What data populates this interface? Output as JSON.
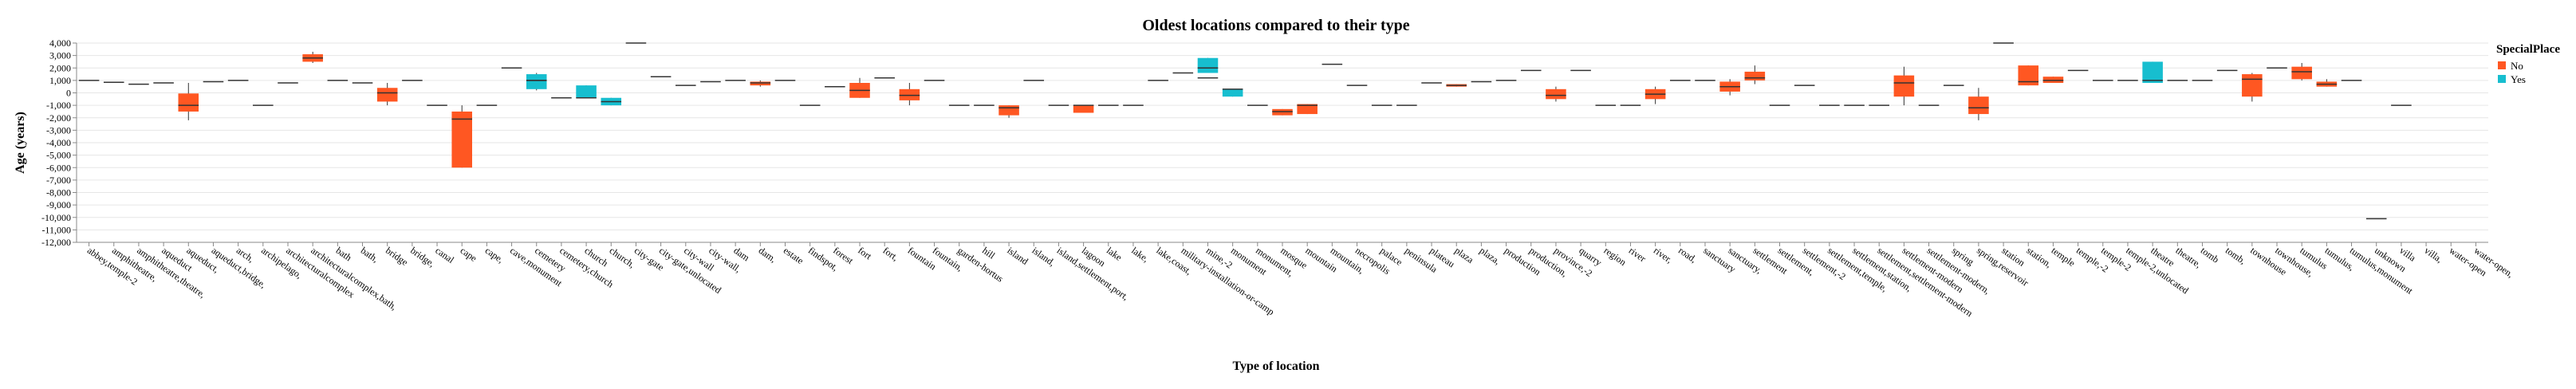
{
  "chart_data": {
    "type": "boxplot",
    "title": "Oldest locations compared to their type",
    "xlabel": "Type of location",
    "ylabel": "Age (years)",
    "ylim": [
      -12000,
      4000
    ],
    "yticks": [
      4000,
      3000,
      2000,
      1000,
      0,
      -1000,
      -2000,
      -3000,
      -4000,
      -5000,
      -6000,
      -7000,
      -8000,
      -9000,
      -10000,
      -11000,
      -12000
    ],
    "ytick_labels": [
      "4,000",
      "3,000",
      "2,000",
      "1,000",
      "0",
      "-1,000",
      "-2,000",
      "-3,000",
      "-4,000",
      "-5,000",
      "-6,000",
      "-7,000",
      "-8,000",
      "-9,000",
      "-10,000",
      "-11,000",
      "-12,000"
    ],
    "grid": true,
    "legend": {
      "title": "SpecialPlace",
      "position": "right",
      "entries": [
        {
          "label": "No",
          "color": "#ff5722"
        },
        {
          "label": "Yes",
          "color": "#17becf"
        }
      ]
    },
    "categories": [
      "abbey,temple-2",
      "amphitheatre,",
      "amphitheatre,theatre,",
      "aqueduct",
      "aqueduct,",
      "aqueduct,bridge,",
      "arch,",
      "archipelago,",
      "architecturalcomplex",
      "architecturalcomplex,bath,",
      "bath",
      "bath,",
      "bridge",
      "bridge,",
      "canal",
      "cape",
      "cape,",
      "cave,monument",
      "cemetery",
      "cemetery,church",
      "church",
      "church,",
      "city-gate",
      "city-gate,unlocated",
      "city-wall",
      "city-wall,",
      "dam",
      "dam,",
      "estate",
      "findspot,",
      "forest",
      "fort",
      "fort,",
      "fountain",
      "fountain,",
      "garden-hortus",
      "hill",
      "island",
      "island,",
      "island,settlement,port,",
      "lagoon",
      "lake",
      "lake,",
      "lake,coast,",
      "military-installation-or-camp",
      "mine,-2",
      "monument",
      "monument,",
      "mosque",
      "mountain",
      "mountain,",
      "necropolis",
      "palace",
      "peninsula",
      "plateau",
      "plaza",
      "plaza,",
      "production",
      "production,",
      "province,-2",
      "quarry",
      "region",
      "river",
      "river,",
      "road,",
      "sanctuary",
      "sanctuary,",
      "settlement",
      "settlement,",
      "settlement,-2",
      "settlement,temple,",
      "settlement,station,",
      "settlement,settlement-modern",
      "settlement-modern",
      "settlement-modern,",
      "spring",
      "spring,reservoir",
      "station",
      "station,",
      "temple",
      "temple,-2",
      "temple-2",
      "temple-2,unlocated",
      "theatre",
      "theatre,",
      "tomb",
      "tomb,",
      "townhouse",
      "townhouse,",
      "tumulus",
      "tumulus,",
      "tumulus,monument",
      "unknown",
      "villa",
      "villa,",
      "water-open",
      "water-open,"
    ],
    "boxes": [
      {
        "cat": 0,
        "group": "No",
        "min": 1000,
        "q1": 1000,
        "median": 1000,
        "q3": 1000,
        "max": 1000
      },
      {
        "cat": 1,
        "group": "No",
        "min": 850,
        "q1": 850,
        "median": 850,
        "q3": 850,
        "max": 850
      },
      {
        "cat": 2,
        "group": "No",
        "min": 700,
        "q1": 700,
        "median": 700,
        "q3": 700,
        "max": 700
      },
      {
        "cat": 3,
        "group": "No",
        "min": 800,
        "q1": 800,
        "median": 800,
        "q3": 800,
        "max": 800
      },
      {
        "cat": 4,
        "group": "No",
        "min": -2200,
        "q1": -1500,
        "median": -1000,
        "q3": -50,
        "max": 800
      },
      {
        "cat": 5,
        "group": "No",
        "min": 900,
        "q1": 900,
        "median": 900,
        "q3": 900,
        "max": 900
      },
      {
        "cat": 6,
        "group": "No",
        "min": 1000,
        "q1": 1000,
        "median": 1000,
        "q3": 1000,
        "max": 1000
      },
      {
        "cat": 7,
        "group": "No",
        "min": -1000,
        "q1": -1000,
        "median": -1000,
        "q3": -1000,
        "max": -1000
      },
      {
        "cat": 8,
        "group": "No",
        "min": 800,
        "q1": 800,
        "median": 800,
        "q3": 800,
        "max": 800
      },
      {
        "cat": 9,
        "group": "No",
        "min": 2400,
        "q1": 2500,
        "median": 2800,
        "q3": 3100,
        "max": 3300
      },
      {
        "cat": 10,
        "group": "No",
        "min": 1000,
        "q1": 1000,
        "median": 1000,
        "q3": 1000,
        "max": 1000
      },
      {
        "cat": 11,
        "group": "No",
        "min": 800,
        "q1": 800,
        "median": 800,
        "q3": 800,
        "max": 800
      },
      {
        "cat": 12,
        "group": "No",
        "min": -1000,
        "q1": -700,
        "median": 0,
        "q3": 400,
        "max": 800
      },
      {
        "cat": 13,
        "group": "No",
        "min": 1000,
        "q1": 1000,
        "median": 1000,
        "q3": 1000,
        "max": 1000
      },
      {
        "cat": 14,
        "group": "No",
        "min": -1000,
        "q1": -1000,
        "median": -1000,
        "q3": -1000,
        "max": -1000
      },
      {
        "cat": 15,
        "group": "No",
        "min": -6000,
        "q1": -6000,
        "median": -2100,
        "q3": -1500,
        "max": -1000
      },
      {
        "cat": 16,
        "group": "No",
        "min": -1000,
        "q1": -1000,
        "median": -1000,
        "q3": -1000,
        "max": -1000
      },
      {
        "cat": 17,
        "group": "No",
        "min": 2000,
        "q1": 2000,
        "median": 2000,
        "q3": 2000,
        "max": 2000
      },
      {
        "cat": 18,
        "group": "Yes",
        "min": 200,
        "q1": 300,
        "median": 1000,
        "q3": 1500,
        "max": 1600
      },
      {
        "cat": 18,
        "group": "No",
        "min": 1000,
        "q1": 1000,
        "median": 1000,
        "q3": 1000,
        "max": 1000
      },
      {
        "cat": 19,
        "group": "No",
        "min": -400,
        "q1": -400,
        "median": -400,
        "q3": -400,
        "max": -400
      },
      {
        "cat": 20,
        "group": "Yes",
        "min": -400,
        "q1": -400,
        "median": -400,
        "q3": 600,
        "max": 600
      },
      {
        "cat": 21,
        "group": "Yes",
        "min": -1000,
        "q1": -1000,
        "median": -700,
        "q3": -400,
        "max": -400
      },
      {
        "cat": 22,
        "group": "No",
        "min": 4000,
        "q1": 4000,
        "median": 4000,
        "q3": 4000,
        "max": 4000
      },
      {
        "cat": 23,
        "group": "No",
        "min": 1300,
        "q1": 1300,
        "median": 1300,
        "q3": 1300,
        "max": 1300
      },
      {
        "cat": 24,
        "group": "No",
        "min": 600,
        "q1": 600,
        "median": 600,
        "q3": 600,
        "max": 600
      },
      {
        "cat": 25,
        "group": "No",
        "min": 900,
        "q1": 900,
        "median": 900,
        "q3": 900,
        "max": 900
      },
      {
        "cat": 26,
        "group": "No",
        "min": 1000,
        "q1": 1000,
        "median": 1000,
        "q3": 1000,
        "max": 1000
      },
      {
        "cat": 27,
        "group": "No",
        "min": 500,
        "q1": 600,
        "median": 800,
        "q3": 900,
        "max": 1000
      },
      {
        "cat": 28,
        "group": "No",
        "min": 1000,
        "q1": 1000,
        "median": 1000,
        "q3": 1000,
        "max": 1000
      },
      {
        "cat": 29,
        "group": "No",
        "min": -1000,
        "q1": -1000,
        "median": -1000,
        "q3": -1000,
        "max": -1000
      },
      {
        "cat": 30,
        "group": "No",
        "min": 500,
        "q1": 500,
        "median": 500,
        "q3": 500,
        "max": 500
      },
      {
        "cat": 31,
        "group": "No",
        "min": -400,
        "q1": -400,
        "median": 200,
        "q3": 800,
        "max": 1200
      },
      {
        "cat": 32,
        "group": "No",
        "min": 1200,
        "q1": 1200,
        "median": 1200,
        "q3": 1200,
        "max": 1200
      },
      {
        "cat": 33,
        "group": "No",
        "min": -1000,
        "q1": -600,
        "median": -200,
        "q3": 300,
        "max": 800
      },
      {
        "cat": 34,
        "group": "No",
        "min": 1000,
        "q1": 1000,
        "median": 1000,
        "q3": 1000,
        "max": 1000
      },
      {
        "cat": 35,
        "group": "No",
        "min": -1000,
        "q1": -1000,
        "median": -1000,
        "q3": -1000,
        "max": -1000
      },
      {
        "cat": 36,
        "group": "No",
        "min": -1000,
        "q1": -1000,
        "median": -1000,
        "q3": -1000,
        "max": -1000
      },
      {
        "cat": 37,
        "group": "No",
        "min": -2000,
        "q1": -1800,
        "median": -1200,
        "q3": -1000,
        "max": -1000
      },
      {
        "cat": 38,
        "group": "No",
        "min": 1000,
        "q1": 1000,
        "median": 1000,
        "q3": 1000,
        "max": 1000
      },
      {
        "cat": 39,
        "group": "No",
        "min": -1000,
        "q1": -1000,
        "median": -1000,
        "q3": -1000,
        "max": -1000
      },
      {
        "cat": 40,
        "group": "No",
        "min": -1600,
        "q1": -1600,
        "median": -1000,
        "q3": -1000,
        "max": -1000
      },
      {
        "cat": 41,
        "group": "No",
        "min": -1000,
        "q1": -1000,
        "median": -1000,
        "q3": -1000,
        "max": -1000
      },
      {
        "cat": 42,
        "group": "No",
        "min": -1000,
        "q1": -1000,
        "median": -1000,
        "q3": -1000,
        "max": -1000
      },
      {
        "cat": 43,
        "group": "No",
        "min": 1000,
        "q1": 1000,
        "median": 1000,
        "q3": 1000,
        "max": 1000
      },
      {
        "cat": 44,
        "group": "No",
        "min": 1600,
        "q1": 1600,
        "median": 1600,
        "q3": 1600,
        "max": 1600
      },
      {
        "cat": 45,
        "group": "Yes",
        "min": 1600,
        "q1": 1600,
        "median": 2000,
        "q3": 2800,
        "max": 2800
      },
      {
        "cat": 45,
        "group": "No",
        "min": 1200,
        "q1": 1200,
        "median": 1200,
        "q3": 1200,
        "max": 1200
      },
      {
        "cat": 46,
        "group": "Yes",
        "min": -300,
        "q1": -300,
        "median": 300,
        "q3": 300,
        "max": 300
      },
      {
        "cat": 47,
        "group": "No",
        "min": -1000,
        "q1": -1000,
        "median": -1000,
        "q3": -1000,
        "max": -1000
      },
      {
        "cat": 48,
        "group": "No",
        "min": -1800,
        "q1": -1800,
        "median": -1500,
        "q3": -1300,
        "max": -1300
      },
      {
        "cat": 49,
        "group": "No",
        "min": -1700,
        "q1": -1700,
        "median": -1000,
        "q3": -900,
        "max": -900
      },
      {
        "cat": 50,
        "group": "No",
        "min": 2300,
        "q1": 2300,
        "median": 2300,
        "q3": 2300,
        "max": 2300
      },
      {
        "cat": 51,
        "group": "No",
        "min": 600,
        "q1": 600,
        "median": 600,
        "q3": 600,
        "max": 600
      },
      {
        "cat": 52,
        "group": "No",
        "min": -1000,
        "q1": -1000,
        "median": -1000,
        "q3": -1000,
        "max": -1000
      },
      {
        "cat": 53,
        "group": "No",
        "min": -1000,
        "q1": -1000,
        "median": -1000,
        "q3": -1000,
        "max": -1000
      },
      {
        "cat": 54,
        "group": "No",
        "min": 800,
        "q1": 800,
        "median": 800,
        "q3": 800,
        "max": 800
      },
      {
        "cat": 55,
        "group": "No",
        "min": 500,
        "q1": 500,
        "median": 600,
        "q3": 700,
        "max": 700
      },
      {
        "cat": 56,
        "group": "No",
        "min": 900,
        "q1": 900,
        "median": 900,
        "q3": 900,
        "max": 900
      },
      {
        "cat": 57,
        "group": "No",
        "min": 1000,
        "q1": 1000,
        "median": 1000,
        "q3": 1000,
        "max": 1000
      },
      {
        "cat": 58,
        "group": "No",
        "min": 1800,
        "q1": 1800,
        "median": 1800,
        "q3": 1800,
        "max": 1800
      },
      {
        "cat": 59,
        "group": "No",
        "min": -700,
        "q1": -500,
        "median": -200,
        "q3": 300,
        "max": 500
      },
      {
        "cat": 60,
        "group": "No",
        "min": 1800,
        "q1": 1800,
        "median": 1800,
        "q3": 1800,
        "max": 1800
      },
      {
        "cat": 61,
        "group": "No",
        "min": -1000,
        "q1": -1000,
        "median": -1000,
        "q3": -1000,
        "max": -1000
      },
      {
        "cat": 62,
        "group": "No",
        "min": -1000,
        "q1": -1000,
        "median": -1000,
        "q3": -1000,
        "max": -1000
      },
      {
        "cat": 63,
        "group": "No",
        "min": -900,
        "q1": -500,
        "median": -100,
        "q3": 300,
        "max": 500
      },
      {
        "cat": 64,
        "group": "No",
        "min": 1000,
        "q1": 1000,
        "median": 1000,
        "q3": 1000,
        "max": 1000
      },
      {
        "cat": 65,
        "group": "No",
        "min": 1000,
        "q1": 1000,
        "median": 1000,
        "q3": 1000,
        "max": 1000
      },
      {
        "cat": 66,
        "group": "No",
        "min": -200,
        "q1": 100,
        "median": 500,
        "q3": 900,
        "max": 1100
      },
      {
        "cat": 67,
        "group": "No",
        "min": 700,
        "q1": 1000,
        "median": 1200,
        "q3": 1700,
        "max": 2200
      },
      {
        "cat": 68,
        "group": "No",
        "min": -1000,
        "q1": -1000,
        "median": -1000,
        "q3": -1000,
        "max": -1000
      },
      {
        "cat": 69,
        "group": "No",
        "min": 600,
        "q1": 600,
        "median": 600,
        "q3": 600,
        "max": 600
      },
      {
        "cat": 70,
        "group": "No",
        "min": -1000,
        "q1": -1000,
        "median": -1000,
        "q3": -1000,
        "max": -1000
      },
      {
        "cat": 71,
        "group": "No",
        "min": -1000,
        "q1": -1000,
        "median": -1000,
        "q3": -1000,
        "max": -1000
      },
      {
        "cat": 72,
        "group": "No",
        "min": -1000,
        "q1": -1000,
        "median": -1000,
        "q3": -1000,
        "max": -1000
      },
      {
        "cat": 73,
        "group": "No",
        "min": -1000,
        "q1": -300,
        "median": 800,
        "q3": 1400,
        "max": 2100
      },
      {
        "cat": 74,
        "group": "No",
        "min": -1000,
        "q1": -1000,
        "median": -1000,
        "q3": -1000,
        "max": -1000
      },
      {
        "cat": 75,
        "group": "No",
        "min": 600,
        "q1": 600,
        "median": 600,
        "q3": 600,
        "max": 600
      },
      {
        "cat": 76,
        "group": "No",
        "min": -2200,
        "q1": -1700,
        "median": -1200,
        "q3": -300,
        "max": 400
      },
      {
        "cat": 77,
        "group": "No",
        "min": 4000,
        "q1": 4000,
        "median": 4000,
        "q3": 4000,
        "max": 4000
      },
      {
        "cat": 78,
        "group": "No",
        "min": 600,
        "q1": 600,
        "median": 900,
        "q3": 2200,
        "max": 2200
      },
      {
        "cat": 79,
        "group": "No",
        "min": 800,
        "q1": 800,
        "median": 1000,
        "q3": 1300,
        "max": 1300
      },
      {
        "cat": 80,
        "group": "No",
        "min": 1800,
        "q1": 1800,
        "median": 1800,
        "q3": 1800,
        "max": 1800
      },
      {
        "cat": 81,
        "group": "No",
        "min": 1000,
        "q1": 1000,
        "median": 1000,
        "q3": 1000,
        "max": 1000
      },
      {
        "cat": 82,
        "group": "No",
        "min": 1000,
        "q1": 1000,
        "median": 1000,
        "q3": 1000,
        "max": 1000
      },
      {
        "cat": 83,
        "group": "Yes",
        "min": 800,
        "q1": 800,
        "median": 1000,
        "q3": 2500,
        "max": 2500
      },
      {
        "cat": 84,
        "group": "No",
        "min": 1000,
        "q1": 1000,
        "median": 1000,
        "q3": 1000,
        "max": 1000
      },
      {
        "cat": 85,
        "group": "No",
        "min": 1000,
        "q1": 1000,
        "median": 1000,
        "q3": 1000,
        "max": 1000
      },
      {
        "cat": 86,
        "group": "No",
        "min": 1800,
        "q1": 1800,
        "median": 1800,
        "q3": 1800,
        "max": 1800
      },
      {
        "cat": 87,
        "group": "No",
        "min": -700,
        "q1": -300,
        "median": 1100,
        "q3": 1500,
        "max": 1600
      },
      {
        "cat": 88,
        "group": "No",
        "min": 2000,
        "q1": 2000,
        "median": 2000,
        "q3": 2000,
        "max": 2000
      },
      {
        "cat": 89,
        "group": "No",
        "min": 1000,
        "q1": 1100,
        "median": 1700,
        "q3": 2100,
        "max": 2400
      },
      {
        "cat": 90,
        "group": "No",
        "min": 500,
        "q1": 500,
        "median": 700,
        "q3": 900,
        "max": 1100
      },
      {
        "cat": 91,
        "group": "No",
        "min": 1000,
        "q1": 1000,
        "median": 1000,
        "q3": 1000,
        "max": 1000
      },
      {
        "cat": 92,
        "group": "No",
        "min": -10100,
        "q1": -10100,
        "median": -10100,
        "q3": -10100,
        "max": -10100
      },
      {
        "cat": 93,
        "group": "No",
        "min": -1000,
        "q1": -1000,
        "median": -1000,
        "q3": -1000,
        "max": -1000
      }
    ]
  }
}
